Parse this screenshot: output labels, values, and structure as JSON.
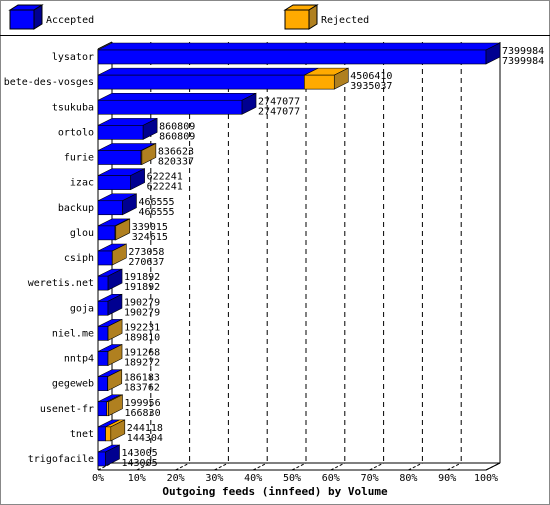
{
  "chart_data": {
    "type": "bar3d-stacked-horizontal",
    "xlabel": "Outgoing feeds (innfeed) by Volume",
    "categories": [
      "lysator",
      "bete-des-vosges",
      "tsukuba",
      "ortolo",
      "furie",
      "izac",
      "backup",
      "glou",
      "csiph",
      "weretis.net",
      "goja",
      "niel.me",
      "nntp4",
      "gegeweb",
      "usenet-fr",
      "tnet",
      "trigofacile"
    ],
    "totals": [
      7399984,
      4506410,
      2747077,
      860809,
      836623,
      622241,
      466555,
      339015,
      273058,
      191892,
      190279,
      192231,
      191268,
      186183,
      199956,
      244118,
      143005
    ],
    "series": [
      {
        "name": "Accepted",
        "color": "#0000ff",
        "side_color": "#000090",
        "values": [
          7399984,
          3935037,
          2747077,
          860809,
          820337,
          622241,
          466555,
          324615,
          270637,
          191892,
          190279,
          189810,
          189272,
          183762,
          166830,
          144304,
          143005
        ]
      },
      {
        "name": "Rejected",
        "color": "#ffaa00",
        "side_color": "#b08020",
        "values": [
          0,
          571373,
          0,
          0,
          16286,
          0,
          0,
          14400,
          2421,
          0,
          0,
          2421,
          1996,
          2421,
          33126,
          99814,
          0
        ]
      }
    ],
    "xlim": [
      0,
      7399984
    ],
    "xticks": [
      {
        "value": 0,
        "label": "0%"
      },
      {
        "value": 739998.4,
        "label": "10%"
      },
      {
        "value": 1479996.8,
        "label": "20%"
      },
      {
        "value": 2219995.2,
        "label": "30%"
      },
      {
        "value": 2959993.6,
        "label": "40%"
      },
      {
        "value": 3699992,
        "label": "50%"
      },
      {
        "value": 4439990.4,
        "label": "60%"
      },
      {
        "value": 5179988.8,
        "label": "70%"
      },
      {
        "value": 5919987.2,
        "label": "80%"
      },
      {
        "value": 6659985.6,
        "label": "90%"
      },
      {
        "value": 7399984,
        "label": "100%"
      }
    ],
    "grid": true
  }
}
